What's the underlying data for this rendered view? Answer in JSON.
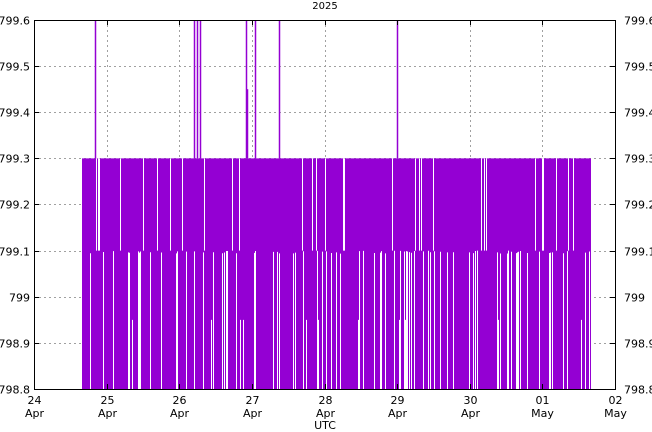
{
  "chart_data": {
    "type": "area",
    "title": "2025",
    "xlabel": "UTC",
    "ylabel": "",
    "ylim": [
      798.8,
      799.6
    ],
    "yticks": [
      "798.8",
      "798.9",
      "799",
      "799.1",
      "799.2",
      "799.3",
      "799.4",
      "799.5",
      "799.6"
    ],
    "xlim": [
      "2025-04-24",
      "2025-05-02"
    ],
    "xticks": [
      {
        "day": "24",
        "month": "Apr"
      },
      {
        "day": "25",
        "month": "Apr"
      },
      {
        "day": "26",
        "month": "Apr"
      },
      {
        "day": "27",
        "month": "Apr"
      },
      {
        "day": "28",
        "month": "Apr"
      },
      {
        "day": "29",
        "month": "Apr"
      },
      {
        "day": "30",
        "month": "Apr"
      },
      {
        "day": "01",
        "month": "May"
      },
      {
        "day": "02",
        "month": "May"
      }
    ],
    "grid": true,
    "series_color": "#9400d3",
    "x_start": "2025-04-24T16:00",
    "x_end": "2025-05-01T16:00",
    "base_level": 799.3,
    "dips_to_799_1": [
      "04-24 17:00",
      "04-24 23:00",
      "04-25 03:00",
      "04-25 08:00",
      "04-25 14:00",
      "04-25 22:00",
      "04-26 06:00",
      "04-26 13:00",
      "04-26 21:00",
      "04-27 04:00",
      "04-27 12:00",
      "04-27 19:00",
      "04-28 02:00",
      "04-28 10:00",
      "04-28 18:00",
      "04-29 01:00",
      "04-29 09:00",
      "04-29 17:00",
      "04-30 01:00",
      "04-30 09:00",
      "04-30 17:00",
      "05-01 01:00",
      "05-01 09:00",
      "05-01 14:00"
    ],
    "spikes_to_799_6": [
      "04-24 20:00",
      "04-26 05:00",
      "04-26 06:00",
      "04-26 07:00",
      "04-26 22:00",
      "04-27 01:00",
      "04-27 09:00",
      "04-28 23:59"
    ],
    "spikes_to_799_45": [
      "04-26 22:30"
    ]
  }
}
